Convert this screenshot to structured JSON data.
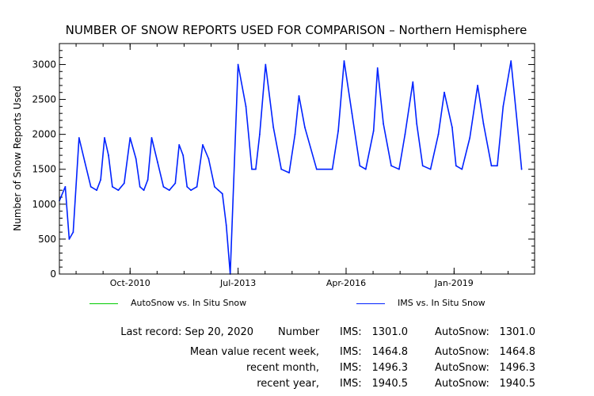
{
  "chart_data": {
    "type": "line",
    "title": "NUMBER OF SNOW REPORTS USED FOR COMPARISON – Northern Hemisphere",
    "ylabel": "Number of Snow Reports Used",
    "xlabel": "",
    "x_tick_labels": [
      "Oct-2010",
      "Jul-2013",
      "Apr-2016",
      "Jan-2019"
    ],
    "x_tick_years": [
      2010.75,
      2013.5,
      2016.25,
      2019.0
    ],
    "xlim": [
      2008.95,
      2021.05
    ],
    "ylim": [
      0,
      3300
    ],
    "yticks": [
      0,
      500,
      1000,
      1500,
      2000,
      2500,
      3000
    ],
    "grid": false,
    "legend_position": "bottom",
    "series": [
      {
        "name": "AutoSnow vs. In Situ Snow",
        "color": "#00cc00",
        "values": []
      },
      {
        "name": "IMS vs. In Situ Snow",
        "color": "#0022ff",
        "x": [
          2008.95,
          2009.1,
          2009.2,
          2009.3,
          2009.45,
          2009.6,
          2009.75,
          2009.9,
          2010.0,
          2010.1,
          2010.2,
          2010.3,
          2010.45,
          2010.6,
          2010.75,
          2010.9,
          2011.0,
          2011.1,
          2011.2,
          2011.3,
          2011.45,
          2011.6,
          2011.75,
          2011.9,
          2012.0,
          2012.1,
          2012.2,
          2012.3,
          2012.45,
          2012.6,
          2012.75,
          2012.9,
          2013.0,
          2013.1,
          2013.2,
          2013.3,
          2013.5,
          2013.7,
          2013.85,
          2013.95,
          2014.05,
          2014.2,
          2014.4,
          2014.6,
          2014.8,
          2014.95,
          2015.05,
          2015.2,
          2015.5,
          2015.9,
          2016.05,
          2016.2,
          2016.4,
          2016.6,
          2016.75,
          2016.95,
          2017.05,
          2017.2,
          2017.4,
          2017.6,
          2017.75,
          2017.95,
          2018.05,
          2018.2,
          2018.4,
          2018.6,
          2018.75,
          2018.95,
          2019.05,
          2019.2,
          2019.4,
          2019.6,
          2019.75,
          2019.95,
          2020.1,
          2020.25,
          2020.45,
          2020.6,
          2020.72
        ],
        "values": [
          1050,
          1250,
          500,
          600,
          1950,
          1600,
          1250,
          1200,
          1350,
          1950,
          1700,
          1250,
          1200,
          1300,
          1950,
          1650,
          1250,
          1200,
          1350,
          1950,
          1600,
          1250,
          1200,
          1300,
          1850,
          1700,
          1250,
          1200,
          1250,
          1850,
          1650,
          1250,
          1200,
          1150,
          700,
          0,
          3000,
          2400,
          1500,
          1500,
          2000,
          3000,
          2100,
          1500,
          1450,
          2000,
          2550,
          2100,
          1500,
          1500,
          2050,
          3050,
          2300,
          1550,
          1500,
          2050,
          2950,
          2150,
          1550,
          1500,
          2000,
          2750,
          2150,
          1550,
          1500,
          2000,
          2600,
          2100,
          1550,
          1500,
          1950,
          2700,
          2150,
          1550,
          1550,
          2400,
          3050,
          2200,
          1500
        ]
      }
    ]
  },
  "legend": {
    "autosnow_label": "AutoSnow vs. In Situ Snow",
    "ims_label": "IMS vs. In Situ Snow"
  },
  "stats": {
    "last_record": "Last record: Sep 20, 2020",
    "number_label": "Number",
    "mean_label": "Mean value recent week,",
    "month_label": "recent month,",
    "year_label": "recent year,",
    "ims_label": "IMS:",
    "auto_label": "AutoSnow:",
    "number_ims": "1301.0",
    "number_auto": "1301.0",
    "week_ims": "1464.8",
    "week_auto": "1464.8",
    "month_ims": "1496.3",
    "month_auto": "1496.3",
    "year_ims": "1940.5",
    "year_auto": "1940.5"
  }
}
